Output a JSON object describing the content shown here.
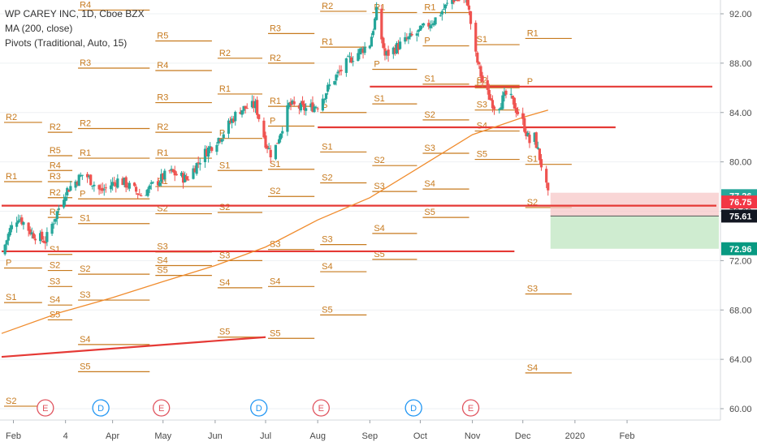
{
  "legend": {
    "title": "WP CAREY INC, 1D, Cboe BZX",
    "ma": "MA (200, close)",
    "pivots": "Pivots (Traditional, Auto, 15)"
  },
  "colors": {
    "up": "#26a69a",
    "down": "#ef5350",
    "pivot": "#c77a1e",
    "ma": "#f08c2e",
    "trendline": "#e53935",
    "grid": "#eef0f3",
    "axis_text": "#4a4a4a"
  },
  "chart_data": {
    "type": "candlestick",
    "title": "WP CAREY INC, 1D, Cboe BZX",
    "ylim": [
      58.5,
      93.5
    ],
    "y_ticks": [
      "60.00",
      "64.00",
      "68.00",
      "72.00",
      "76.00",
      "80.00",
      "84.00",
      "88.00",
      "92.00"
    ],
    "x_ticks": [
      "Feb",
      "4",
      "Apr",
      "May",
      "Jun",
      "Jul",
      "Aug",
      "Sep",
      "Oct",
      "Nov",
      "Dec",
      "2020",
      "Feb"
    ],
    "price_path": [
      [
        "Jan 25",
        72.5
      ],
      [
        "Jan 30",
        74.5
      ],
      [
        "Feb 4",
        75.6
      ],
      [
        "Feb 12",
        74.2
      ],
      [
        "Feb 20",
        73.6
      ],
      [
        "Mar 4",
        77.6
      ],
      [
        "Mar 15",
        79.1
      ],
      [
        "Mar 25",
        77.6
      ],
      [
        "Apr 5",
        78.6
      ],
      [
        "Apr 18",
        77.3
      ],
      [
        "Apr 25",
        78.1
      ],
      [
        "May 5",
        79.2
      ],
      [
        "May 15",
        78.6
      ],
      [
        "May 25",
        80.6
      ],
      [
        "Jun 5",
        82.2
      ],
      [
        "Jun 15",
        84.2
      ],
      [
        "Jun 25",
        84.6
      ],
      [
        "Jul 1",
        81.6
      ],
      [
        "Jul 5",
        80.4
      ],
      [
        "Jul 15",
        84.6
      ],
      [
        "Jul 25",
        84.3
      ],
      [
        "Aug 1",
        84.6
      ],
      [
        "Aug 10",
        86.6
      ],
      [
        "Aug 20",
        88.3
      ],
      [
        "Sep 1",
        89.6
      ],
      [
        "Sep 5",
        92.1
      ],
      [
        "Sep 10",
        88.6
      ],
      [
        "Sep 20",
        89.6
      ],
      [
        "Oct 1",
        90.6
      ],
      [
        "Oct 10",
        91.6
      ],
      [
        "Oct 20",
        93.2
      ],
      [
        "Oct 29",
        93.0
      ],
      [
        "Nov 3",
        88.6
      ],
      [
        "Nov 8",
        86.0
      ],
      [
        "Nov 15",
        84.3
      ],
      [
        "Nov 22",
        85.6
      ],
      [
        "Dec 1",
        83.2
      ],
      [
        "Dec 5",
        81.6
      ],
      [
        "Dec 8",
        82.0
      ],
      [
        "Dec 13",
        79.2
      ],
      [
        "Dec 16",
        77.26
      ]
    ],
    "series": [
      {
        "name": "MA (200, close)",
        "points": [
          [
            "Jan 25",
            66.1
          ],
          [
            "Mar 1",
            67.8
          ],
          [
            "Apr 1",
            69.0
          ],
          [
            "May 1",
            70.3
          ],
          [
            "Jun 1",
            71.6
          ],
          [
            "Jul 1",
            73.1
          ],
          [
            "Aug 1",
            75.3
          ],
          [
            "Sep 1",
            77.1
          ],
          [
            "Oct 1",
            79.6
          ],
          [
            "Nov 1",
            82.2
          ],
          [
            "Dec 1",
            83.6
          ],
          [
            "Dec 16",
            84.2
          ]
        ]
      }
    ],
    "pivot_periods": [
      {
        "start": "Jan 25",
        "end": "Feb 20",
        "levels": {
          "R2": 83.2,
          "R1": 78.4,
          "P": 71.4,
          "S1": 68.6,
          "S2": 60.2
        }
      },
      {
        "start": "Feb 20",
        "end": "Mar 10",
        "levels": {
          "R2": 82.4,
          "R5": 80.5,
          "R4": 79.3,
          "R3": 78.4,
          "R2b": 77.1,
          "R1": 75.5,
          "S1": 72.5,
          "S2": 71.2,
          "S3": 69.9,
          "S4": 68.4,
          "S5": 67.2
        }
      },
      {
        "start": "Mar 10",
        "end": "Apr 25",
        "levels": {
          "R5": 93.7,
          "R4": 92.3,
          "R3": 87.6,
          "R2": 82.7,
          "R1": 80.3,
          "P": 77.0,
          "S1": 75.0,
          "S2": 70.9,
          "S3": 68.8,
          "S4": 65.2,
          "S5": 63.0
        }
      },
      {
        "start": "Apr 25",
        "end": "Jun 1",
        "levels": {
          "R5": 89.8,
          "R4": 87.4,
          "R3": 84.8,
          "R2": 82.4,
          "R1": 80.3,
          "S1": 78.0,
          "S2": 75.8,
          "S3": 72.7,
          "S4": 71.6,
          "S5": 70.8
        }
      },
      {
        "start": "Jun 1",
        "end": "Jul 1",
        "levels": {
          "R2": 88.4,
          "R1": 85.5,
          "P": 81.9,
          "S1": 79.3,
          "S2": 75.9,
          "S3": 72.0,
          "S4": 69.8,
          "S5": 65.8
        }
      },
      {
        "start": "Jul 1",
        "end": "Aug 1",
        "levels": {
          "R4": 93.4,
          "R3": 90.4,
          "R2": 88.0,
          "R1": 84.5,
          "P": 82.9,
          "S1": 79.4,
          "S2": 77.2,
          "S3": 72.9,
          "S4": 69.9,
          "S5": 65.7
        }
      },
      {
        "start": "Aug 1",
        "end": "Sep 1",
        "levels": {
          "R2": 92.2,
          "R1": 89.3,
          "P": 84.0,
          "S1": 80.8,
          "S2": 78.3,
          "S3": 73.3,
          "S4": 71.1,
          "S5": 67.6
        }
      },
      {
        "start": "Sep 1",
        "end": "Oct 1",
        "levels": {
          "R1": 92.1,
          "P": 87.5,
          "S1": 84.7,
          "S2": 79.7,
          "S3": 77.6,
          "S4": 74.2,
          "S5": 72.1
        }
      },
      {
        "start": "Oct 1",
        "end": "Nov 1",
        "levels": {
          "R1": 92.1,
          "P": 89.4,
          "S1": 86.3,
          "S2": 83.4,
          "S3": 80.7,
          "S4": 77.8,
          "S5": 75.5
        }
      },
      {
        "start": "Nov 1",
        "end": "Dec 1",
        "levels": {
          "S1": 89.5,
          "S2": 86.2,
          "P": 86.0,
          "S3": 84.2,
          "S4": 82.5,
          "S5": 80.2
        }
      },
      {
        "start": "Dec 1",
        "end": "Jan 1",
        "levels": {
          "R1": 90.0,
          "P": 86.1,
          "S1": 79.8,
          "S2": 76.3,
          "S3": 69.3,
          "S4": 62.9
        }
      }
    ],
    "horizontal_lines": [
      {
        "name": "resistance-line",
        "y": 86.1,
        "x_from": "Sep 1",
        "x_to": "Jan 25"
      },
      {
        "name": "resistance-line",
        "y": 82.8,
        "x_from": "Aug 1",
        "x_to": "Jan 1"
      },
      {
        "name": "support-line",
        "y": 76.45,
        "x_from": "Jan 25",
        "x_to": "Jan 28"
      },
      {
        "name": "support-line",
        "y": 72.75,
        "x_from": "Jan 25",
        "x_to": "Nov 26"
      }
    ],
    "trend_line": {
      "from": [
        "Jan 25",
        64.2
      ],
      "to": [
        "Jul 1",
        65.8
      ]
    },
    "position": {
      "entry": 75.61,
      "stop": 76.75,
      "target": 72.96,
      "stop_top": 77.5
    },
    "price_labels": [
      {
        "value": 77.26,
        "text": "77.26",
        "color": "#26a69a"
      },
      {
        "value": 76.75,
        "text": "76.75",
        "color": "#f23645"
      },
      {
        "value": 75.61,
        "text": "75.61",
        "color": "#131722"
      },
      {
        "value": 72.96,
        "text": "72.96",
        "color": "#089981"
      }
    ],
    "events": [
      {
        "letter": "E",
        "x": "Feb 20",
        "color": "#e0545f"
      },
      {
        "letter": "D",
        "x": "Mar 25",
        "color": "#2196f3"
      },
      {
        "letter": "E",
        "x": "Apr 30",
        "color": "#e0545f"
      },
      {
        "letter": "D",
        "x": "Jun 27",
        "color": "#2196f3"
      },
      {
        "letter": "E",
        "x": "Aug 3",
        "color": "#e0545f"
      },
      {
        "letter": "D",
        "x": "Sep 27",
        "color": "#2196f3"
      },
      {
        "letter": "E",
        "x": "Oct 31",
        "color": "#e0545f"
      }
    ]
  }
}
